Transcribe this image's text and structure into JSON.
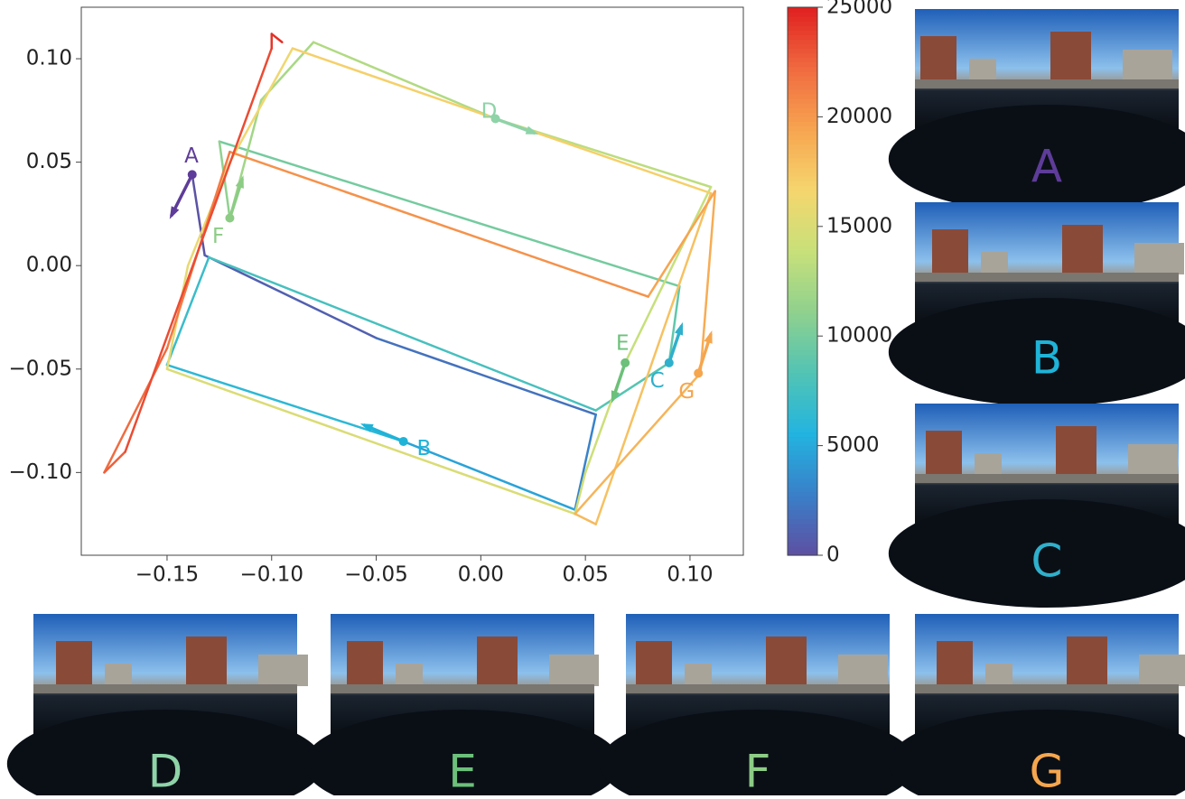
{
  "chart_data": {
    "type": "trajectory",
    "x": [
      -0.138,
      -0.132,
      -0.05,
      0.055,
      0.045,
      -0.037,
      -0.15,
      -0.13,
      0.055,
      0.09,
      0.095,
      -0.125,
      -0.12,
      -0.105,
      -0.08,
      0.007,
      0.11,
      0.069,
      0.05,
      0.045,
      -0.15,
      -0.14,
      -0.12,
      -0.09,
      0.11,
      0.055,
      0.045,
      0.105,
      0.112,
      0.08,
      -0.12,
      -0.15,
      -0.18,
      -0.17,
      -0.1,
      -0.1,
      -0.095
    ],
    "y": [
      0.044,
      0.005,
      -0.035,
      -0.072,
      -0.118,
      -0.085,
      -0.048,
      0.004,
      -0.07,
      -0.047,
      -0.01,
      0.06,
      0.023,
      0.08,
      0.108,
      0.071,
      0.038,
      -0.047,
      -0.1,
      -0.12,
      -0.05,
      0.0,
      0.05,
      0.105,
      0.035,
      -0.125,
      -0.12,
      -0.052,
      0.036,
      -0.015,
      0.055,
      -0.04,
      -0.1,
      -0.09,
      0.105,
      0.112,
      0.108
    ],
    "t": [
      0,
      500,
      1500,
      2500,
      3500,
      5800,
      6700,
      7200,
      8200,
      8700,
      9300,
      10500,
      11800,
      12200,
      12500,
      13000,
      13600,
      14000,
      14300,
      14500,
      15500,
      15800,
      16200,
      16500,
      17500,
      18200,
      18400,
      18800,
      19300,
      19700,
      21000,
      21800,
      22500,
      22700,
      24000,
      24300,
      24500
    ],
    "colormap": [
      "#5e4fa2",
      "#3a7fc8",
      "#22b4e0",
      "#52c4b4",
      "#8fd18e",
      "#c8e07a",
      "#f5d66e",
      "#f7a550",
      "#f06a40",
      "#e02020"
    ],
    "xlim": [
      -0.191,
      0.1255
    ],
    "ylim": [
      -0.14,
      0.1249
    ],
    "clim": [
      0,
      25000
    ],
    "xticks": [
      {
        "value": -0.15,
        "label": "−0.15"
      },
      {
        "value": -0.1,
        "label": "−0.10"
      },
      {
        "value": -0.05,
        "label": "−0.05"
      },
      {
        "value": 0,
        "label": "0.00"
      },
      {
        "value": 0.05,
        "label": "0.05"
      },
      {
        "value": 0.1,
        "label": "0.10"
      }
    ],
    "yticks": [
      {
        "value": -0.1,
        "label": "−0.10"
      },
      {
        "value": -0.05,
        "label": "−0.05"
      },
      {
        "value": 0,
        "label": "0.00"
      },
      {
        "value": 0.05,
        "label": "0.05"
      },
      {
        "value": 0.1,
        "label": "0.10"
      }
    ],
    "cticks": [
      0,
      5000,
      10000,
      15000,
      20000,
      25000
    ],
    "annotations": [
      {
        "label": "A",
        "color": "#5e3c99",
        "x": -0.138,
        "y": 0.044,
        "x2": -0.148,
        "y2": 0.024
      },
      {
        "label": "B",
        "color": "#1fb3d8",
        "x": -0.037,
        "y": -0.085,
        "x2": -0.056,
        "y2": -0.077
      },
      {
        "label": "C",
        "color": "#2fb0cc",
        "x": 0.09,
        "y": -0.047,
        "x2": 0.096,
        "y2": -0.029
      },
      {
        "label": "D",
        "color": "#8fd3a8",
        "x": 0.007,
        "y": 0.071,
        "x2": 0.026,
        "y2": 0.064
      },
      {
        "label": "E",
        "color": "#6cc07a",
        "x": 0.069,
        "y": -0.047,
        "x2": 0.063,
        "y2": -0.065
      },
      {
        "label": "F",
        "color": "#8ccc85",
        "x": -0.12,
        "y": 0.023,
        "x2": -0.114,
        "y2": 0.042
      },
      {
        "label": "G",
        "color": "#f5a64e",
        "x": 0.104,
        "y": -0.052,
        "x2": 0.11,
        "y2": -0.033
      }
    ]
  },
  "panels": [
    {
      "label": "A",
      "color": "#5e3c99"
    },
    {
      "label": "B",
      "color": "#1fb3d8"
    },
    {
      "label": "C",
      "color": "#2fb0cc"
    },
    {
      "label": "D",
      "color": "#8fd3a8"
    },
    {
      "label": "E",
      "color": "#6cc07a"
    },
    {
      "label": "F",
      "color": "#8ccc85"
    },
    {
      "label": "G",
      "color": "#f5a64e"
    }
  ]
}
